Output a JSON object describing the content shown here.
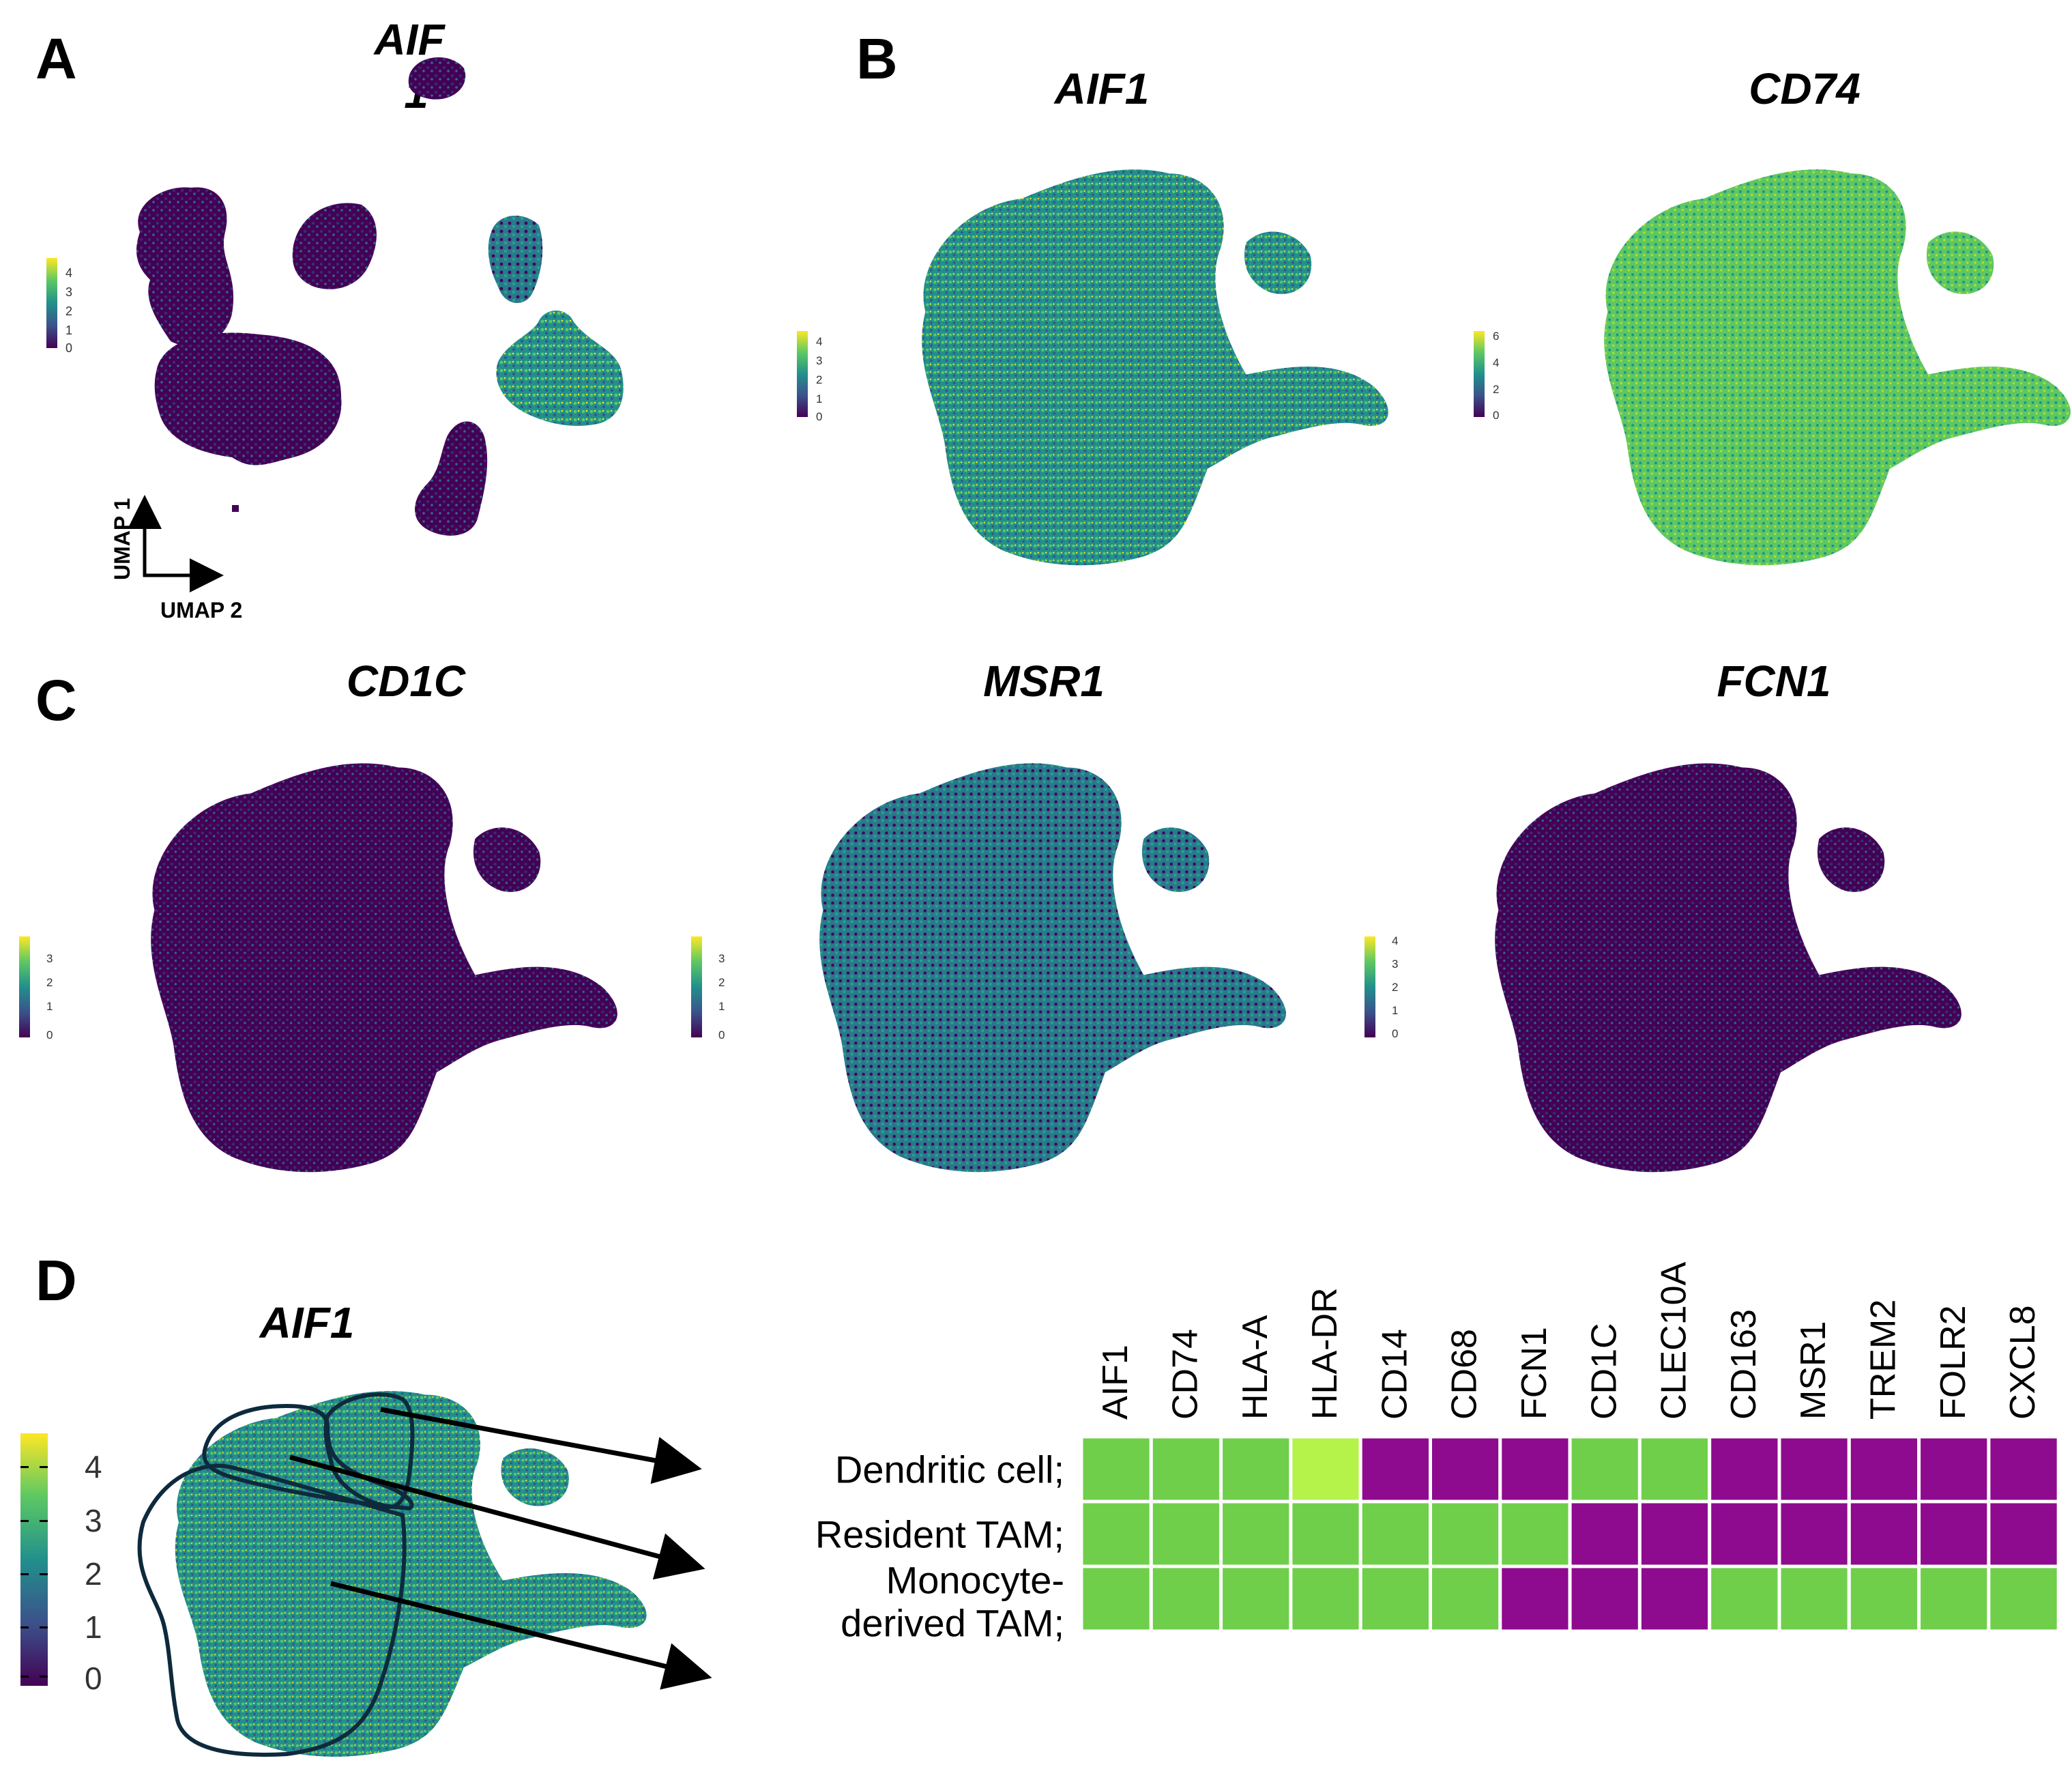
{
  "panels": {
    "A": {
      "label": "A",
      "title_line1": "AIF",
      "title_line2": "1",
      "legend_ticks": [
        "4",
        "3",
        "2",
        "1",
        "0"
      ],
      "axis_y": "UMAP 1",
      "axis_x": "UMAP 2"
    },
    "B": {
      "label": "B",
      "plots": [
        {
          "title": "AIF1",
          "legend_ticks": [
            "4",
            "3",
            "2",
            "1",
            "0"
          ]
        },
        {
          "title": "CD74",
          "legend_ticks": [
            "6",
            "4",
            "2",
            "0"
          ]
        }
      ]
    },
    "C": {
      "label": "C",
      "plots": [
        {
          "title": "CD1C",
          "legend_ticks": [
            "3",
            "2",
            "1",
            "0"
          ]
        },
        {
          "title": "MSR1",
          "legend_ticks": [
            "3",
            "2",
            "1",
            "0"
          ]
        },
        {
          "title": "FCN1",
          "legend_ticks": [
            "4",
            "3",
            "2",
            "1",
            "0"
          ]
        }
      ]
    },
    "D": {
      "label": "D",
      "title": "AIF1",
      "legend_ticks": [
        "4",
        "3",
        "2",
        "1",
        "0"
      ]
    }
  },
  "colors": {
    "viridis": [
      "#440154",
      "#3b528b",
      "#21908c",
      "#5dc863",
      "#fde725"
    ],
    "high": "#6fcf4a",
    "very_high": "#b5f24a",
    "low": "#8e0a8e"
  },
  "chart_data": {
    "type": "heatmap",
    "title": "",
    "genes": [
      "AIF1",
      "CD74",
      "HLA-A",
      "HLA-DR",
      "CD14",
      "CD68",
      "FCN1",
      "CD1C",
      "CLEC10A",
      "CD163",
      "MSR1",
      "TREM2",
      "FOLR2",
      "CXCL8"
    ],
    "cell_types": [
      {
        "line1": "Dendritic cell;",
        "line2": ""
      },
      {
        "line1": "Resident TAM;",
        "line2": ""
      },
      {
        "line1": "Monocyte-",
        "line2": "derived TAM;"
      }
    ],
    "levels": [
      [
        "high",
        "high",
        "high",
        "very_high",
        "low",
        "low",
        "low",
        "high",
        "high",
        "low",
        "low",
        "low",
        "low",
        "low"
      ],
      [
        "high",
        "high",
        "high",
        "high",
        "high",
        "high",
        "high",
        "low",
        "low",
        "low",
        "low",
        "low",
        "low",
        "low"
      ],
      [
        "high",
        "high",
        "high",
        "high",
        "high",
        "high",
        "low",
        "low",
        "low",
        "high",
        "high",
        "high",
        "high",
        "high"
      ]
    ]
  }
}
